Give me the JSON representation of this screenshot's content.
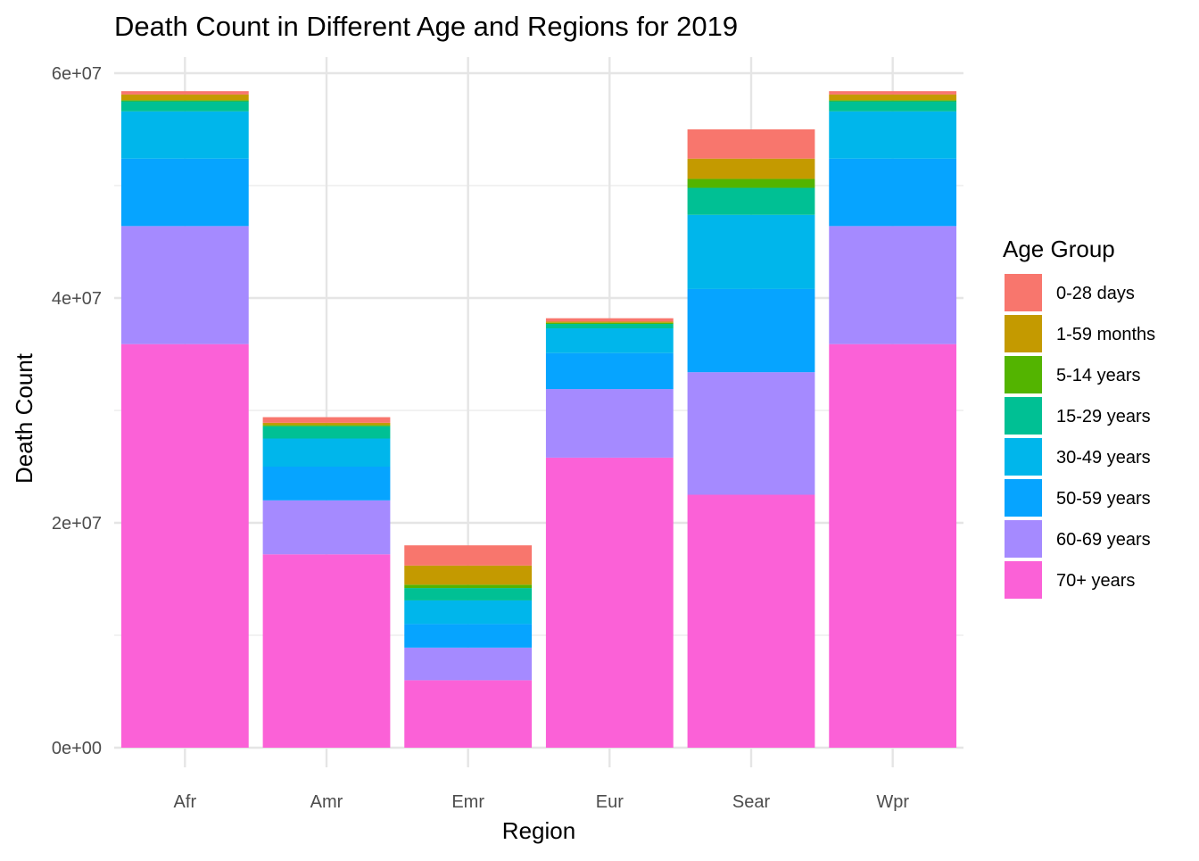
{
  "chart_data": {
    "type": "bar",
    "stacked": true,
    "title": "Death Count in Different Age and Regions for 2019",
    "xlabel": "Region",
    "ylabel": "Death Count",
    "ylim": [
      0,
      60000000
    ],
    "yticks": [
      0,
      20000000,
      40000000,
      60000000
    ],
    "ytick_labels": [
      "0e+00",
      "2e+07",
      "4e+07",
      "6e+07"
    ],
    "grid": true,
    "legend_placement": "right",
    "legend_title": "Age Group",
    "categories": [
      "Afr",
      "Amr",
      "Emr",
      "Eur",
      "Sear",
      "Wpr"
    ],
    "series": [
      {
        "name": "0-28 days",
        "color": "#F8766D",
        "values": [
          300000,
          500000,
          1800000,
          300000,
          2600000,
          300000
        ]
      },
      {
        "name": "1-59 months",
        "color": "#C49A00",
        "values": [
          500000,
          200000,
          1700000,
          100000,
          1800000,
          500000
        ]
      },
      {
        "name": "5-14 years",
        "color": "#53B400",
        "values": [
          100000,
          100000,
          300000,
          100000,
          800000,
          100000
        ]
      },
      {
        "name": "15-29 years",
        "color": "#00C094",
        "values": [
          900000,
          1100000,
          1100000,
          400000,
          2400000,
          900000
        ]
      },
      {
        "name": "30-49 years",
        "color": "#00B6EB",
        "values": [
          4200000,
          2500000,
          2100000,
          2200000,
          6600000,
          4200000
        ]
      },
      {
        "name": "50-59 years",
        "color": "#06A4FF",
        "values": [
          6000000,
          3000000,
          2100000,
          3200000,
          7400000,
          6000000
        ]
      },
      {
        "name": "60-69 years",
        "color": "#A58AFF",
        "values": [
          10500000,
          4800000,
          2900000,
          6100000,
          10900000,
          10500000
        ]
      },
      {
        "name": "70+ years",
        "color": "#FB61D7",
        "values": [
          35900000,
          17200000,
          6000000,
          25800000,
          22500000,
          35900000
        ]
      }
    ]
  }
}
